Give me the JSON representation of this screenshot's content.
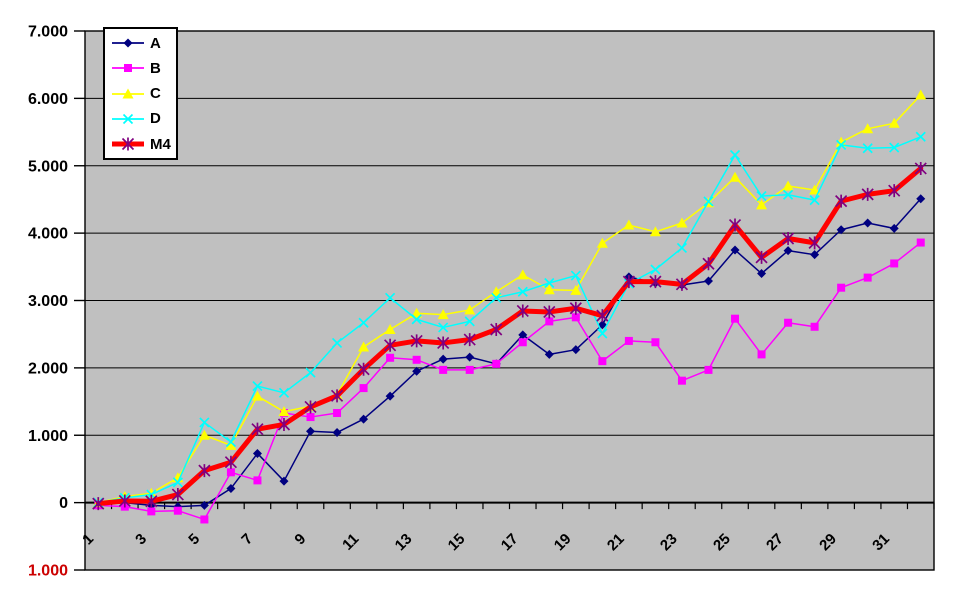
{
  "chart_data": {
    "type": "line",
    "title": "",
    "x": [
      1,
      2,
      3,
      4,
      5,
      6,
      7,
      8,
      9,
      10,
      11,
      12,
      13,
      14,
      15,
      16,
      17,
      18,
      19,
      20,
      21,
      22,
      23,
      24,
      25,
      26,
      27,
      28,
      29,
      30,
      31,
      32
    ],
    "x_label_every": 2,
    "x_tick_labels": [
      "1",
      "3",
      "5",
      "7",
      "9",
      "11",
      "13",
      "15",
      "17",
      "19",
      "21",
      "23",
      "25",
      "27",
      "29",
      "31"
    ],
    "ylim": [
      -1000,
      7000
    ],
    "y_ticks": [
      {
        "value": 7000,
        "label": "7.000"
      },
      {
        "value": 6000,
        "label": "6.000"
      },
      {
        "value": 5000,
        "label": "5.000"
      },
      {
        "value": 4000,
        "label": "4.000"
      },
      {
        "value": 3000,
        "label": "3.000"
      },
      {
        "value": 2000,
        "label": "2.000"
      },
      {
        "value": 1000,
        "label": "1.000"
      },
      {
        "value": 0,
        "label": "0"
      },
      {
        "value": -1000,
        "label": "1.000",
        "negative_red": true
      }
    ],
    "grid": "horizontal",
    "legend_position": "top-left-inside",
    "colors": {
      "plot_bg": "#c0c0c0",
      "page_bg": "#ffffff",
      "grid": "#000000",
      "axis": "#000000",
      "tick_label": "#000000",
      "negative_tick_label": "#cc0000"
    },
    "series": [
      {
        "name": "A",
        "color": "#000080",
        "marker": "diamond",
        "marker_color": "#000080",
        "line_width": 1.5,
        "values": [
          -20,
          0,
          -40,
          -60,
          -40,
          210,
          730,
          320,
          1060,
          1040,
          1240,
          1580,
          1950,
          2130,
          2160,
          2060,
          2490,
          2200,
          2270,
          2640,
          3350,
          3260,
          3230,
          3290,
          3750,
          3400,
          3740,
          3680,
          4050,
          4150,
          4070,
          4510
        ]
      },
      {
        "name": "B",
        "color": "#ff00ff",
        "marker": "square",
        "marker_color": "#ff00ff",
        "line_width": 1.5,
        "values": [
          -40,
          -60,
          -130,
          -120,
          -250,
          450,
          330,
          1330,
          1270,
          1330,
          1700,
          2150,
          2120,
          1970,
          1970,
          2060,
          2380,
          2690,
          2750,
          2100,
          2400,
          2380,
          1810,
          1970,
          2730,
          2200,
          2670,
          2610,
          3190,
          3340,
          3550,
          3860
        ]
      },
      {
        "name": "C",
        "color": "#ffff00",
        "marker": "triangle",
        "marker_color": "#ffff00",
        "line_width": 1.5,
        "values": [
          0,
          90,
          140,
          370,
          1000,
          850,
          1580,
          1350,
          1430,
          1600,
          2310,
          2570,
          2810,
          2790,
          2860,
          3130,
          3380,
          3160,
          3150,
          3850,
          4120,
          4020,
          4150,
          4450,
          4830,
          4420,
          4700,
          4640,
          5350,
          5550,
          5630,
          6050
        ]
      },
      {
        "name": "D",
        "color": "#00ffff",
        "marker": "x",
        "marker_color": "#00ffff",
        "line_width": 1.5,
        "values": [
          0,
          70,
          120,
          300,
          1190,
          900,
          1730,
          1630,
          1930,
          2370,
          2670,
          3040,
          2720,
          2600,
          2690,
          3040,
          3130,
          3260,
          3370,
          2510,
          3250,
          3460,
          3780,
          4470,
          5160,
          4550,
          4570,
          4490,
          5310,
          5260,
          5270,
          5430
        ]
      },
      {
        "name": "M4",
        "color": "#ff0000",
        "marker": "star",
        "marker_color": "#800080",
        "line_width": 5,
        "values": [
          -15,
          25,
          20,
          120,
          475,
          600,
          1090,
          1160,
          1420,
          1585,
          1980,
          2335,
          2400,
          2370,
          2420,
          2570,
          2845,
          2830,
          2885,
          2775,
          3280,
          3280,
          3240,
          3545,
          4120,
          3640,
          3920,
          3855,
          4475,
          4575,
          4630,
          4960
        ]
      }
    ]
  }
}
